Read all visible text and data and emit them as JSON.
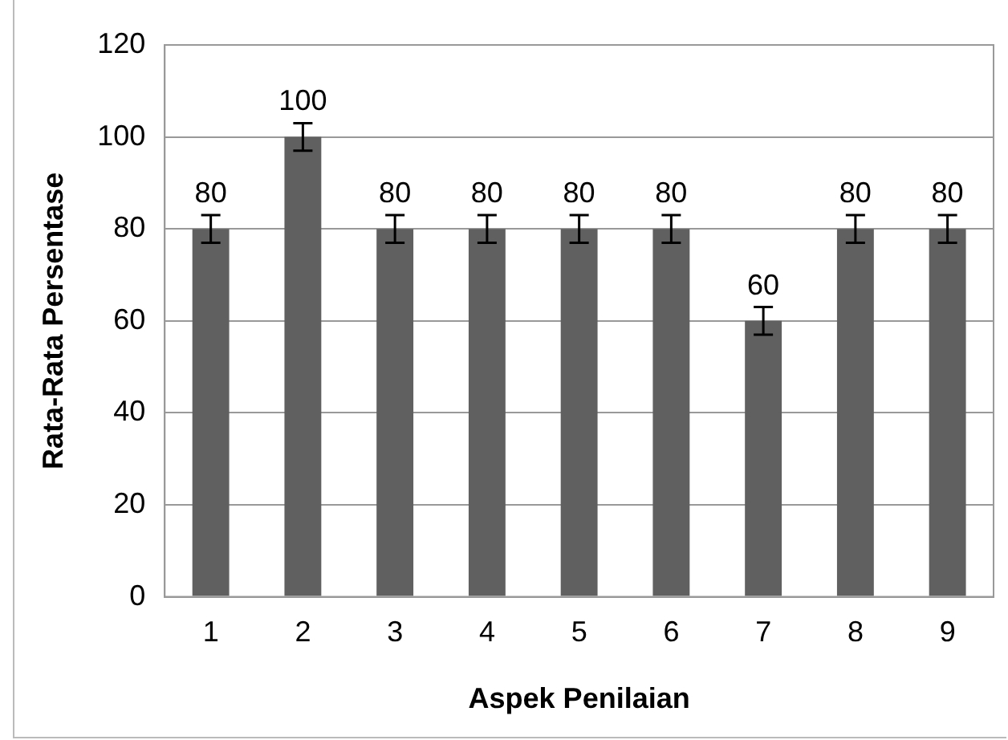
{
  "chart_data": {
    "type": "bar",
    "xlabel": "Aspek Penilaian",
    "ylabel": "Rata-Rata Persentase",
    "categories": [
      "1",
      "2",
      "3",
      "4",
      "5",
      "6",
      "7",
      "8",
      "9"
    ],
    "values": [
      80,
      100,
      80,
      80,
      80,
      80,
      60,
      80,
      80
    ],
    "errors": [
      3,
      3,
      3,
      3,
      3,
      3,
      3,
      3,
      3
    ],
    "color": "#606060",
    "ylim": [
      0,
      120
    ],
    "yticks": [
      0,
      20,
      40,
      60,
      80,
      100,
      120
    ],
    "grid": "y",
    "data_labels": true,
    "legend": false
  }
}
